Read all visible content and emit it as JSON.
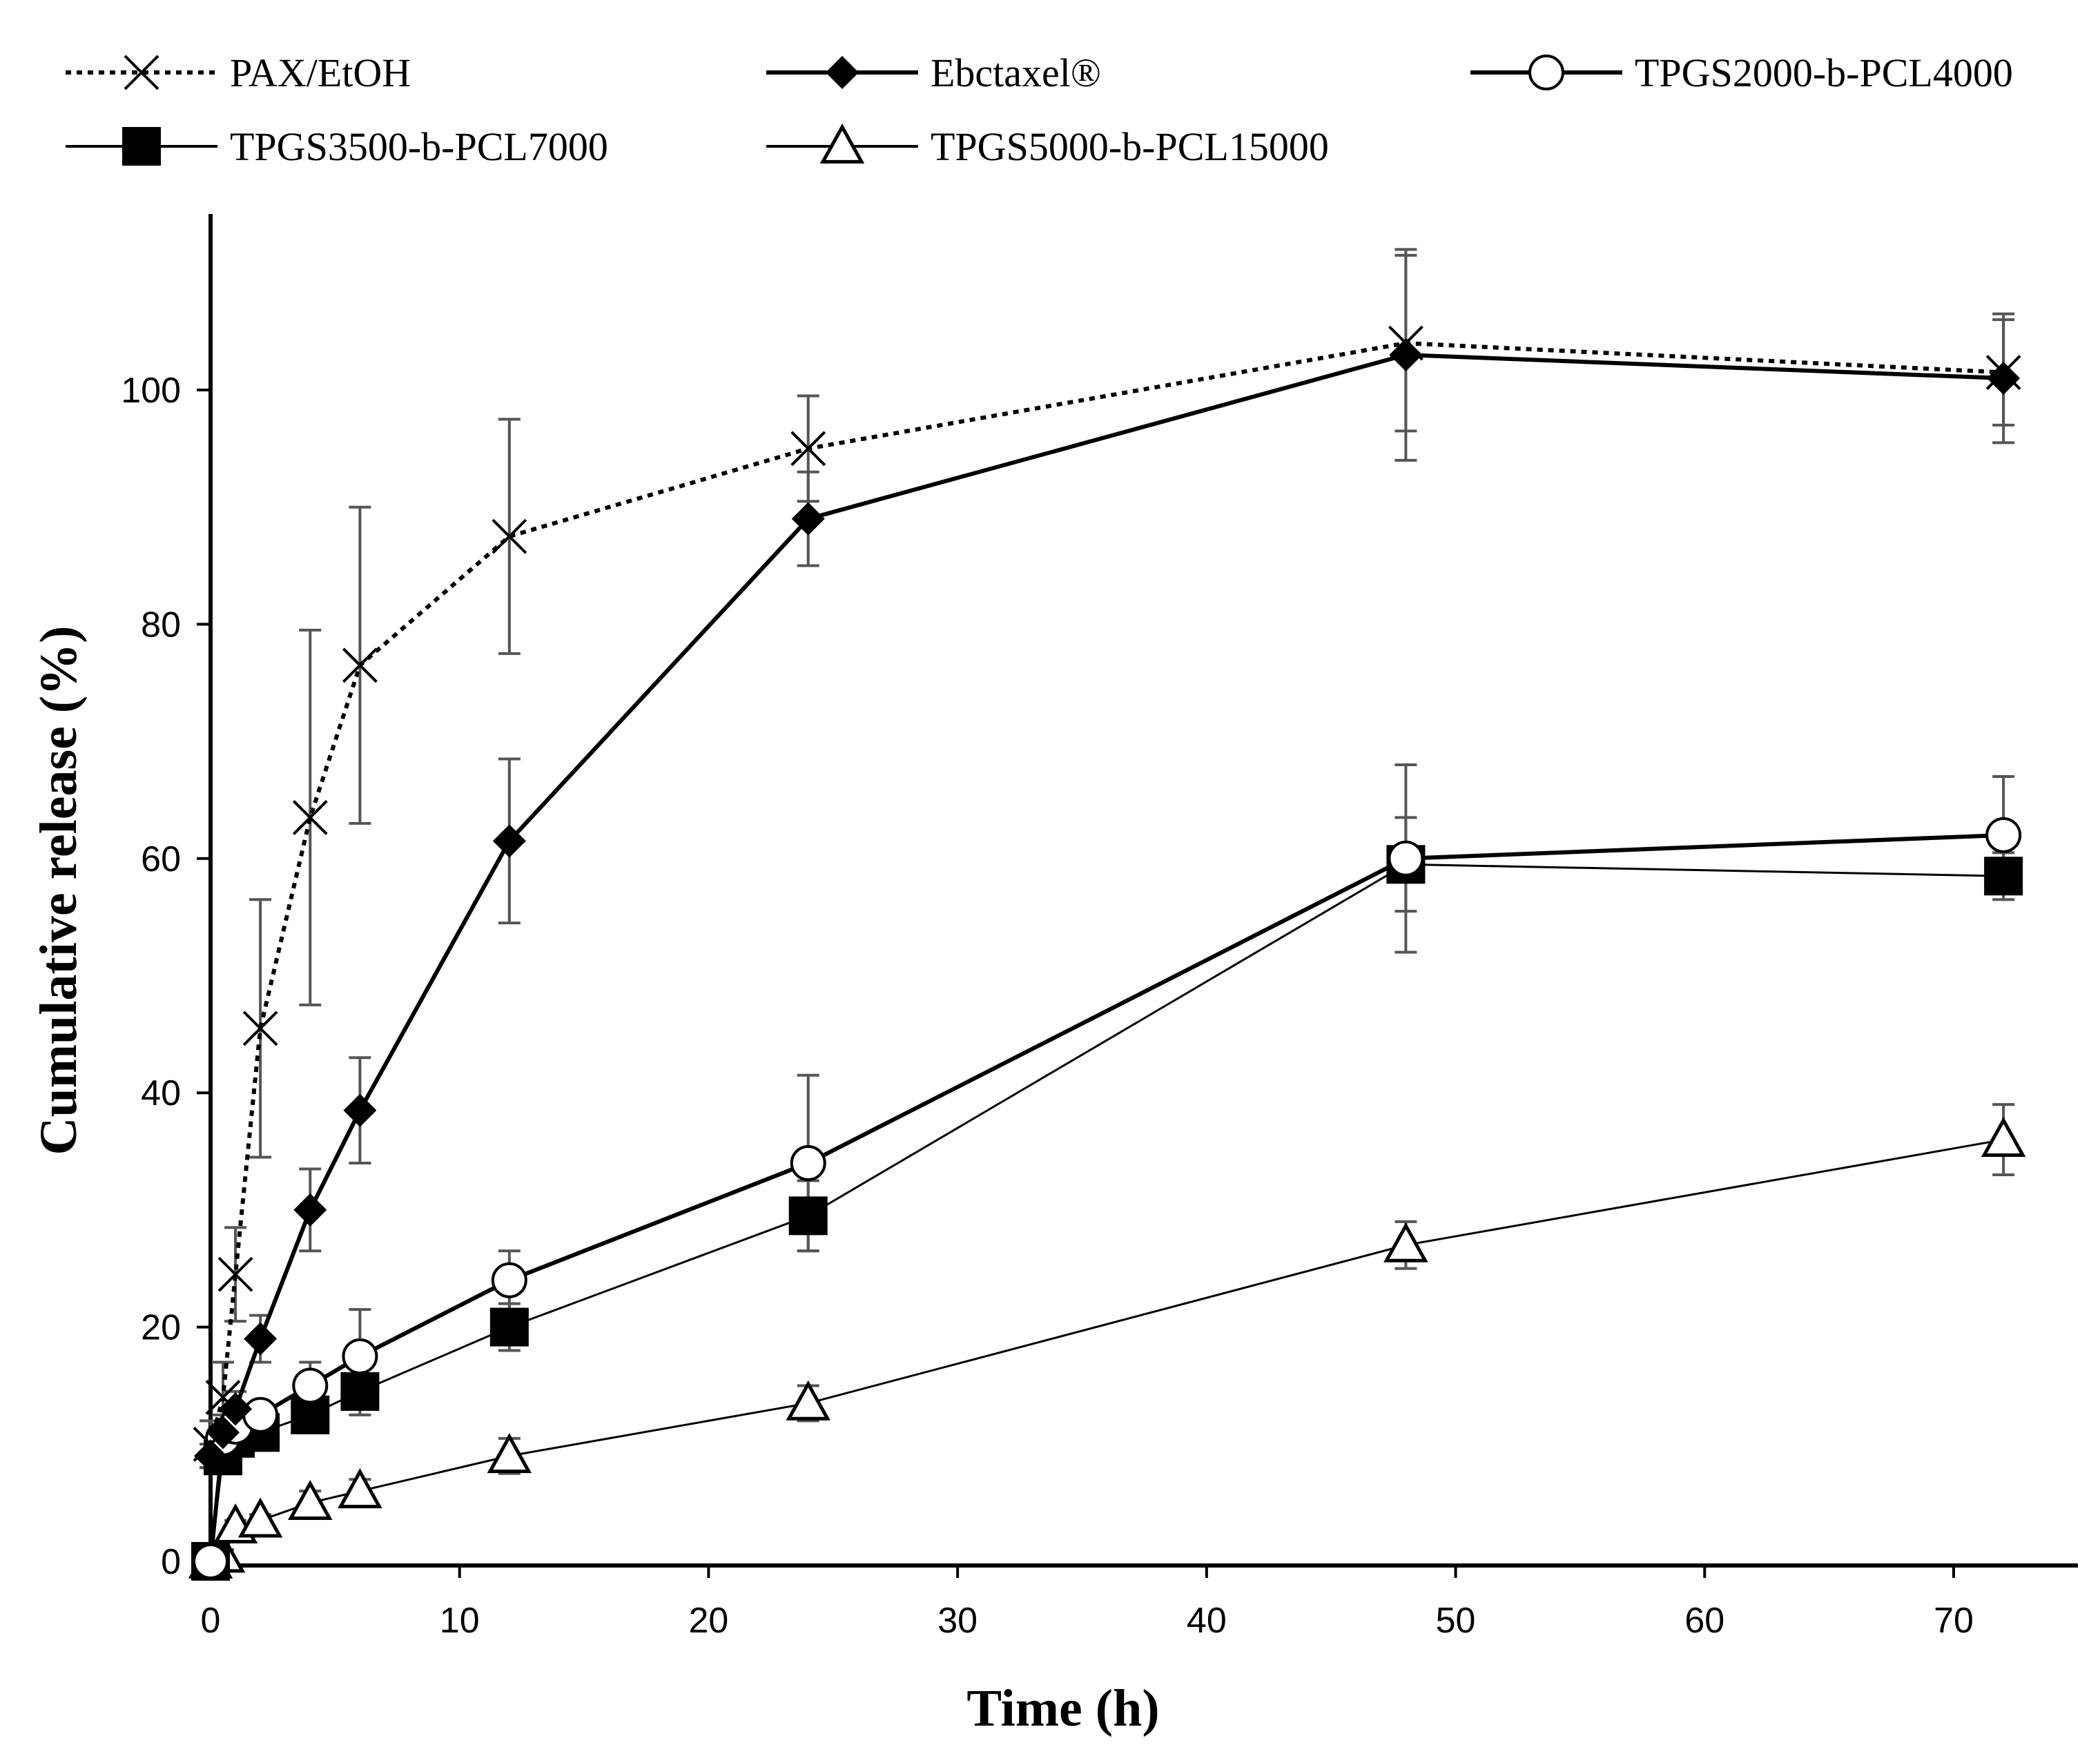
{
  "chart_data": {
    "type": "line",
    "title": "",
    "xlabel": "Time (h)",
    "ylabel": "Cumulative release (%)",
    "xlim": [
      0,
      75
    ],
    "ylim": [
      0,
      115
    ],
    "xticks": [
      0,
      10,
      20,
      30,
      40,
      50,
      60,
      70
    ],
    "yticks": [
      0,
      20,
      40,
      60,
      80,
      100
    ],
    "legend_position": "top",
    "series": [
      {
        "name": "PAX/EtOH",
        "marker": "x",
        "line": "dotted",
        "x": [
          0,
          0.5,
          1,
          2,
          4,
          6,
          12,
          24,
          48,
          72
        ],
        "y": [
          10,
          14,
          24.5,
          45.5,
          63.5,
          76.5,
          87.5,
          95,
          104,
          101.5
        ],
        "err": [
          2,
          3,
          4,
          11,
          16,
          13.5,
          10,
          4.5,
          7.5,
          4.5
        ]
      },
      {
        "name": "Ebctaxel®",
        "marker": "diamond",
        "line": "thick",
        "x": [
          0,
          0.5,
          1,
          2,
          4,
          6,
          12,
          24,
          48,
          72
        ],
        "y": [
          9,
          11,
          13,
          19,
          30,
          38.5,
          61.5,
          89,
          103,
          101
        ],
        "err": [
          1,
          1.5,
          1.5,
          2,
          3.5,
          4.5,
          7,
          4,
          9,
          5.5
        ]
      },
      {
        "name": "TPGS2000-b-PCL4000",
        "marker": "circle-open",
        "line": "thick",
        "x": [
          0,
          0.5,
          1,
          2,
          4,
          6,
          12,
          24,
          48,
          72
        ],
        "y": [
          0,
          10.5,
          11.5,
          12.5,
          15,
          17.5,
          24,
          34,
          60,
          62
        ],
        "err": [
          0,
          1,
          1,
          1,
          2,
          4,
          2.5,
          7.5,
          8,
          5
        ]
      },
      {
        "name": "TPGS3500-b-PCL7000",
        "marker": "square",
        "line": "thin",
        "x": [
          0,
          0.5,
          1,
          2,
          4,
          6,
          12,
          24,
          48,
          72
        ],
        "y": [
          0,
          9,
          10.5,
          11,
          12.5,
          14.5,
          20,
          29.5,
          59.5,
          58.5
        ],
        "err": [
          0,
          1,
          1,
          1,
          1,
          2,
          2,
          3,
          4,
          2
        ]
      },
      {
        "name": "TPGS5000-b-PCL15000",
        "marker": "triangle-open",
        "line": "thin",
        "x": [
          0,
          0.5,
          1,
          2,
          4,
          6,
          12,
          24,
          48,
          72
        ],
        "y": [
          0,
          0.5,
          3,
          3.5,
          5,
          6,
          9,
          13.5,
          27,
          36
        ],
        "err": [
          0,
          0.5,
          0.5,
          0.5,
          1,
          1,
          1.5,
          1.5,
          2,
          3
        ]
      }
    ]
  },
  "colors": {
    "line": "#000000",
    "errorbar": "#555555",
    "background": "#ffffff"
  }
}
